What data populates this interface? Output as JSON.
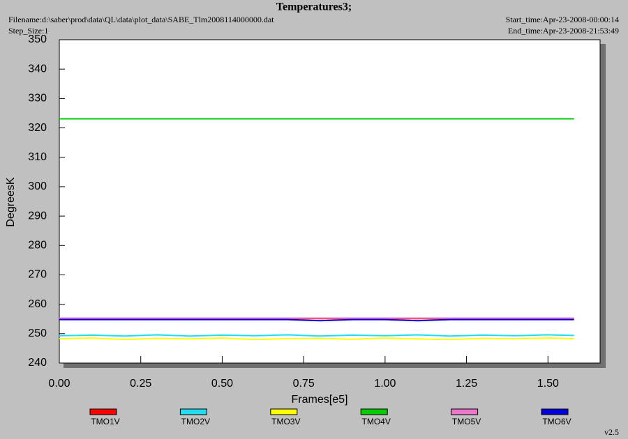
{
  "chart_data": {
    "type": "line",
    "title": "Temperatures3;",
    "filename": "Filename:d:\\saber\\prod\\data\\QL\\data\\plot_data\\SABE_Tlm2008114000000.dat",
    "step_size": "Step_Size:1",
    "start_time": "Start_time:Apr-23-2008-00:00:14",
    "end_time": "End_time:Apr-23-2008-21:53:49",
    "version": "v2.5",
    "xlabel": "Frames[e5]",
    "ylabel": "DegreesK",
    "x": [
      0,
      0.1,
      0.2,
      0.3,
      0.4,
      0.5,
      0.6,
      0.7,
      0.8,
      0.9,
      1.0,
      1.1,
      1.2,
      1.3,
      1.4,
      1.5,
      1.58
    ],
    "series": [
      {
        "name": "TMO1V",
        "color": "#ff0000",
        "values": [
          255.1,
          255.1,
          255.1,
          255.1,
          255.1,
          255.1,
          255.1,
          255.1,
          255.1,
          255.1,
          255.1,
          255.1,
          255.1,
          255.1,
          255.1,
          255.1,
          255.1
        ]
      },
      {
        "name": "TMO2V",
        "color": "#22dcf0",
        "values": [
          249.3,
          249.5,
          249.2,
          249.6,
          249.2,
          249.5,
          249.3,
          249.6,
          249.2,
          249.5,
          249.3,
          249.6,
          249.2,
          249.5,
          249.3,
          249.6,
          249.4
        ]
      },
      {
        "name": "TMO3V",
        "color": "#ffff00",
        "values": [
          248.3,
          248.5,
          248.0,
          248.4,
          248.2,
          248.5,
          248.0,
          248.3,
          248.4,
          248.1,
          248.5,
          248.2,
          248.0,
          248.4,
          248.3,
          248.5,
          248.3
        ]
      },
      {
        "name": "TMO4V",
        "color": "#00cc00",
        "values": [
          323.1,
          323.1,
          323.1,
          323.1,
          323.1,
          323.1,
          323.1,
          323.1,
          323.1,
          323.1,
          323.1,
          323.1,
          323.1,
          323.1,
          323.1,
          323.1,
          323.1
        ]
      },
      {
        "name": "TMO5V",
        "color": "#ee77cc",
        "values": [
          255.3,
          255.3,
          255.3,
          255.3,
          255.3,
          255.3,
          255.3,
          255.3,
          255.3,
          255.3,
          255.3,
          255.3,
          255.3,
          255.3,
          255.3,
          255.3,
          255.3
        ]
      },
      {
        "name": "TMO6V",
        "color": "#0000dd",
        "values": [
          254.8,
          254.8,
          254.8,
          254.8,
          254.8,
          254.8,
          254.8,
          254.8,
          254.4,
          254.8,
          254.8,
          254.4,
          254.8,
          254.8,
          254.8,
          254.8,
          254.8
        ]
      }
    ],
    "xlim": [
      0,
      1.66
    ],
    "ylim": [
      240,
      350
    ],
    "xticks": [
      {
        "value": 0,
        "label": "0.00"
      },
      {
        "value": 0.25,
        "label": "0.25"
      },
      {
        "value": 0.5,
        "label": "0.50"
      },
      {
        "value": 0.75,
        "label": "0.75"
      },
      {
        "value": 1,
        "label": "1.00"
      },
      {
        "value": 1.25,
        "label": "1.25"
      },
      {
        "value": 1.5,
        "label": "1.50"
      }
    ],
    "yticks": [
      240,
      250,
      260,
      270,
      280,
      290,
      300,
      310,
      320,
      330,
      340,
      350
    ],
    "grid": false
  }
}
